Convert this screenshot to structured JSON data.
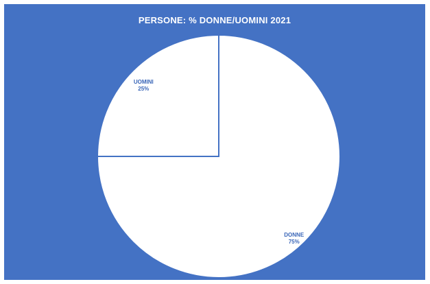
{
  "chart_data": {
    "type": "pie",
    "title": "PERSONE: % DONNE/UOMINI 2021",
    "slices": [
      {
        "label": "UOMINI",
        "value": 25,
        "value_label": "25%",
        "color": "#ffffff"
      },
      {
        "label": "DONNE",
        "value": 75,
        "value_label": "75%",
        "color": "#ffffff"
      }
    ],
    "background_color": "#4472c4",
    "separator_color": "#4472c4",
    "label_color": "#3a66b8"
  }
}
